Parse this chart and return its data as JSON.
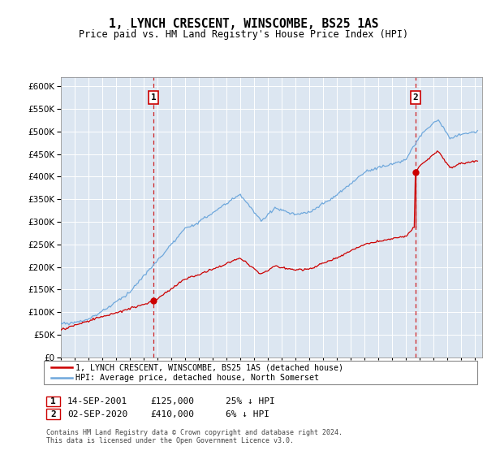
{
  "title": "1, LYNCH CRESCENT, WINSCOMBE, BS25 1AS",
  "subtitle": "Price paid vs. HM Land Registry's House Price Index (HPI)",
  "legend_line1": "1, LYNCH CRESCENT, WINSCOMBE, BS25 1AS (detached house)",
  "legend_line2": "HPI: Average price, detached house, North Somerset",
  "footer": "Contains HM Land Registry data © Crown copyright and database right 2024.\nThis data is licensed under the Open Government Licence v3.0.",
  "sale1_date": "14-SEP-2001",
  "sale1_price": "£125,000",
  "sale1_hpi": "25% ↓ HPI",
  "sale2_date": "02-SEP-2020",
  "sale2_price": "£410,000",
  "sale2_hpi": "6% ↓ HPI",
  "hpi_color": "#6fa8dc",
  "price_color": "#cc0000",
  "background_color": "#dce6f1",
  "sale1_year": 2001.71,
  "sale2_year": 2020.67,
  "sale1_price_val": 125000,
  "sale2_price_val": 410000,
  "ylim": [
    0,
    620000
  ],
  "xlim_start": 1995,
  "xlim_end": 2025.5
}
